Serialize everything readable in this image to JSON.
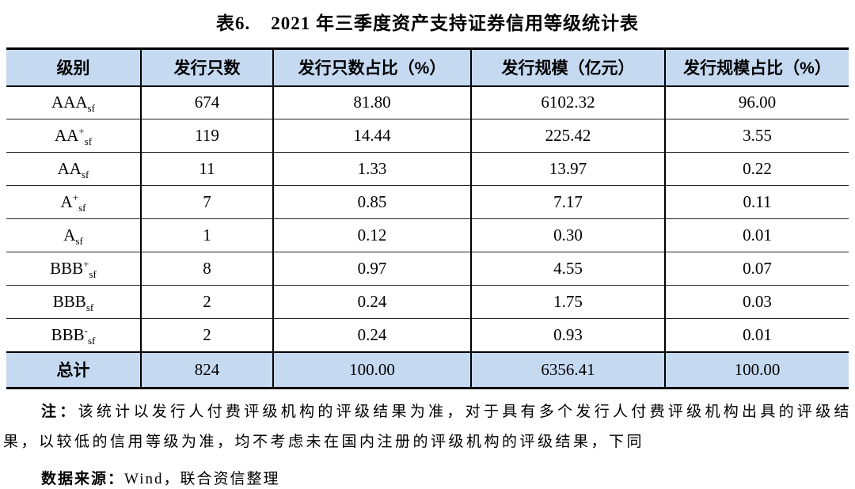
{
  "title": {
    "index": "表6.",
    "text": "2021 年三季度资产支持证券信用等级统计表"
  },
  "table": {
    "headers": [
      "级别",
      "发行只数",
      "发行只数占比（%）",
      "发行规模（亿元）",
      "发行规模占比（%）"
    ],
    "rows": [
      {
        "rating_base": "AAA",
        "rating_sup": "",
        "rating_sub": "sf",
        "issues": "674",
        "issues_pct": "81.80",
        "volume": "6102.32",
        "volume_pct": "96.00"
      },
      {
        "rating_base": "AA",
        "rating_sup": "+",
        "rating_sub": "sf",
        "issues": "119",
        "issues_pct": "14.44",
        "volume": "225.42",
        "volume_pct": "3.55"
      },
      {
        "rating_base": "AA",
        "rating_sup": "",
        "rating_sub": "sf",
        "issues": "11",
        "issues_pct": "1.33",
        "volume": "13.97",
        "volume_pct": "0.22"
      },
      {
        "rating_base": "A",
        "rating_sup": "+",
        "rating_sub": "sf",
        "issues": "7",
        "issues_pct": "0.85",
        "volume": "7.17",
        "volume_pct": "0.11"
      },
      {
        "rating_base": "A",
        "rating_sup": "",
        "rating_sub": "sf",
        "issues": "1",
        "issues_pct": "0.12",
        "volume": "0.30",
        "volume_pct": "0.01"
      },
      {
        "rating_base": "BBB",
        "rating_sup": "+",
        "rating_sub": "sf",
        "issues": "8",
        "issues_pct": "0.97",
        "volume": "4.55",
        "volume_pct": "0.07"
      },
      {
        "rating_base": "BBB",
        "rating_sup": "",
        "rating_sub": "sf",
        "issues": "2",
        "issues_pct": "0.24",
        "volume": "1.75",
        "volume_pct": "0.03"
      },
      {
        "rating_base": "BBB",
        "rating_sup": "-",
        "rating_sub": "sf",
        "issues": "2",
        "issues_pct": "0.24",
        "volume": "0.93",
        "volume_pct": "0.01"
      }
    ],
    "total": {
      "label": "总计",
      "issues": "824",
      "issues_pct": "100.00",
      "volume": "6356.41",
      "volume_pct": "100.00"
    }
  },
  "note": {
    "label": "注：",
    "text": "该统计以发行人付费评级机构的评级结果为准，对于具有多个发行人付费评级机构出具的评级结果，以较低的信用等级为准，均不考虑未在国内注册的评级机构的评级结果，下同"
  },
  "source": {
    "label": "数据来源：",
    "text": "Wind，联合资信整理"
  },
  "colors": {
    "header_bg": "#c5d9f1",
    "total_row_bg": "#c5d9f1",
    "border": "#000000",
    "text": "#000000",
    "page_bg": "#ffffff"
  }
}
